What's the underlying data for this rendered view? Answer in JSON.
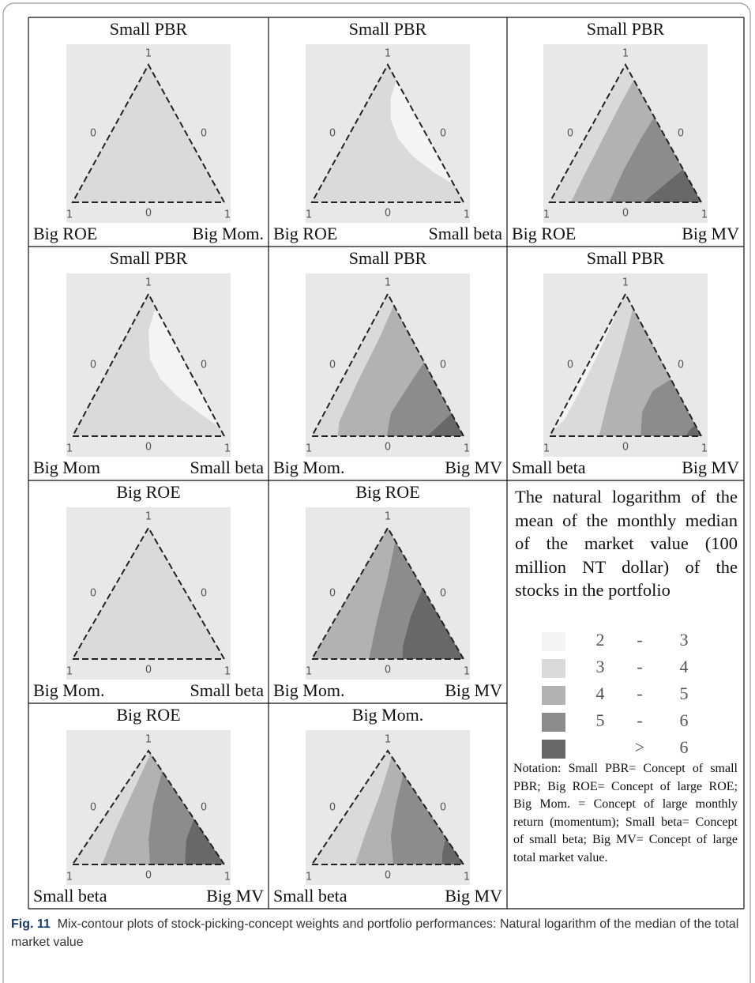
{
  "tick_labels": {
    "apex": "1",
    "left_side": "0",
    "right_side": "0",
    "bottom_left": "1",
    "bottom_middle": "0",
    "bottom_right": "1"
  },
  "plots": [
    {
      "title": "Small PBR",
      "left": "Big ROE",
      "right": "Big Mom."
    },
    {
      "title": "Small PBR",
      "left": "Big ROE",
      "right": "Small beta"
    },
    {
      "title": "Small PBR",
      "left": "Big ROE",
      "right": "Big MV"
    },
    {
      "title": "Small PBR",
      "left": "Big Mom",
      "right": "Small beta"
    },
    {
      "title": "Small PBR",
      "left": "Big Mom.",
      "right": "Big MV"
    },
    {
      "title": "Small PBR",
      "left": "Small beta",
      "right": "Big MV"
    },
    {
      "title": "Big ROE",
      "left": "Big Mom.",
      "right": "Small beta"
    },
    {
      "title": "Big ROE",
      "left": "Big Mom.",
      "right": "Big MV"
    },
    {
      "title": "Big ROE",
      "left": "Small beta",
      "right": "Big MV"
    },
    {
      "title": "Big Mom.",
      "left": "Small beta",
      "right": "Big MV"
    }
  ],
  "legend": {
    "description": "The natural logarithm of the mean of the monthly median of the market value (100 million NT dollar) of the stocks in the portfolio",
    "rows": [
      {
        "from": "2",
        "sep": "-",
        "to": "3",
        "color": "#f4f4f4"
      },
      {
        "from": "3",
        "sep": "-",
        "to": "4",
        "color": "#dadada"
      },
      {
        "from": "4",
        "sep": "-",
        "to": "5",
        "color": "#b2b2b2"
      },
      {
        "from": "5",
        "sep": "-",
        "to": "6",
        "color": "#8c8c8c"
      },
      {
        "sep": ">",
        "to": "6",
        "color": "#686868"
      }
    ]
  },
  "notation": "Notation: Small PBR= Concept of small PBR; Big ROE= Concept of large ROE; Big Mom. = Concept of large monthly return (momentum); Small beta= Concept of small beta; Big MV= Concept of large total market value.",
  "caption": {
    "label": "Fig. 11",
    "text": "Mix-contour plots of stock-picking-concept weights and portfolio performances: Natural logarithm of the median of the total market value"
  }
}
